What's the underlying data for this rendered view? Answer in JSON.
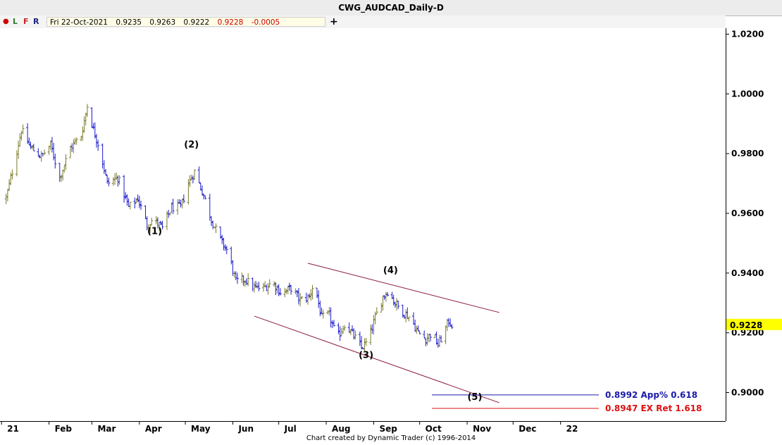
{
  "window": {
    "title": "CWG_AUDCAD_Daily-D"
  },
  "toolbar": {
    "dot_icon": "red-dot-icon",
    "buttons": [
      {
        "label": "L",
        "color": "#2e7d32"
      },
      {
        "label": "F",
        "color": "#c62828"
      },
      {
        "label": "R",
        "color": "#1a237e"
      }
    ],
    "plus_label": "+"
  },
  "ohlc": {
    "date": "Fri 22-Oct-2021",
    "open": "0.9235",
    "high": "0.9263",
    "low": "0.9222",
    "close": "0.9228",
    "change": "-0.0005"
  },
  "chart_data": {
    "type": "ohlc",
    "title": "CWG_AUDCAD_Daily-D",
    "y_ticks": [
      "1.0200",
      "1.0000",
      "0.9800",
      "0.9600",
      "0.9400",
      "0.9200",
      "0.9000"
    ],
    "x_ticks": [
      "21",
      "Feb",
      "Mar",
      "Apr",
      "May",
      "Jun",
      "Jul",
      "Aug",
      "Sep",
      "Oct",
      "Nov",
      "Dec",
      "22"
    ],
    "ylim": [
      0.891,
      1.022
    ],
    "last_price": "0.9228",
    "colors": {
      "up": "#7a7a2a",
      "down": "#1a1acc"
    },
    "anchors": [
      [
        "2021-01-04",
        0.965
      ],
      [
        "2021-01-08",
        0.974
      ],
      [
        "2021-01-14",
        0.988
      ],
      [
        "2021-01-20",
        0.982
      ],
      [
        "2021-01-27",
        0.979
      ],
      [
        "2021-02-02",
        0.983
      ],
      [
        "2021-02-08",
        0.972
      ],
      [
        "2021-02-15",
        0.982
      ],
      [
        "2021-02-22",
        0.986
      ],
      [
        "2021-02-26",
        0.996
      ],
      [
        "2021-03-02",
        0.988
      ],
      [
        "2021-03-06",
        0.982
      ],
      [
        "2021-03-11",
        0.97
      ],
      [
        "2021-03-18",
        0.972
      ],
      [
        "2021-03-25",
        0.962
      ],
      [
        "2021-03-31",
        0.965
      ],
      [
        "2021-04-06",
        0.956
      ],
      [
        "2021-04-10",
        0.958
      ],
      [
        "2021-04-16",
        0.955
      ],
      [
        "2021-04-22",
        0.962
      ],
      [
        "2021-04-28",
        0.962
      ],
      [
        "2021-05-03",
        0.97
      ],
      [
        "2021-05-07",
        0.974
      ],
      [
        "2021-05-13",
        0.966
      ],
      [
        "2021-05-18",
        0.958
      ],
      [
        "2021-05-24",
        0.951
      ],
      [
        "2021-05-29",
        0.947
      ],
      [
        "2021-06-03",
        0.937
      ],
      [
        "2021-06-09",
        0.938
      ],
      [
        "2021-06-15",
        0.935
      ],
      [
        "2021-06-21",
        0.935
      ],
      [
        "2021-06-27",
        0.937
      ],
      [
        "2021-07-03",
        0.933
      ],
      [
        "2021-07-09",
        0.935
      ],
      [
        "2021-07-15",
        0.931
      ],
      [
        "2021-07-21",
        0.932
      ],
      [
        "2021-07-24",
        0.937
      ],
      [
        "2021-07-29",
        0.925
      ],
      [
        "2021-08-03",
        0.926
      ],
      [
        "2021-08-08",
        0.918
      ],
      [
        "2021-08-13",
        0.923
      ],
      [
        "2021-08-19",
        0.919
      ],
      [
        "2021-08-24",
        0.915
      ],
      [
        "2021-08-28",
        0.917
      ],
      [
        "2021-09-02",
        0.925
      ],
      [
        "2021-09-07",
        0.932
      ],
      [
        "2021-09-10",
        0.934
      ],
      [
        "2021-09-15",
        0.93
      ],
      [
        "2021-09-20",
        0.927
      ],
      [
        "2021-09-25",
        0.925
      ],
      [
        "2021-09-30",
        0.92
      ],
      [
        "2021-10-05",
        0.918
      ],
      [
        "2021-10-09",
        0.92
      ],
      [
        "2021-10-13",
        0.916
      ],
      [
        "2021-10-16",
        0.919
      ],
      [
        "2021-10-20",
        0.924
      ],
      [
        "2021-10-22",
        0.9228
      ]
    ],
    "wave_labels": [
      {
        "text": "(1)",
        "date": "2021-04-11",
        "price": 0.953
      },
      {
        "text": "(2)",
        "date": "2021-05-05",
        "price": 0.982
      },
      {
        "text": "(3)",
        "date": "2021-08-27",
        "price": 0.9115
      },
      {
        "text": "(4)",
        "date": "2021-09-12",
        "price": 0.94
      },
      {
        "text": "(5)",
        "date": "2021-11-06",
        "price": 0.8975
      }
    ],
    "trendlines": [
      {
        "name": "upper-channel",
        "from": [
          "2021-07-20",
          0.9433
        ],
        "to": [
          "2021-11-22",
          0.9268
        ],
        "color": "#8b1a3a"
      },
      {
        "name": "lower-channel",
        "from": [
          "2021-06-15",
          0.9256
        ],
        "to": [
          "2021-11-22",
          0.8966
        ],
        "color": "#8b1a3a"
      }
    ],
    "levels": [
      {
        "price": 0.8992,
        "label": "0.8992 App% 0.618",
        "color": "#1a1aaa",
        "start": "2021-10-09"
      },
      {
        "price": 0.8947,
        "label": "0.8947 EX Ret 1.618",
        "color": "#dd1111",
        "start": "2021-10-09"
      }
    ]
  },
  "footer": {
    "credit": "Chart created by Dynamic Trader  (c) 1996-2014"
  }
}
